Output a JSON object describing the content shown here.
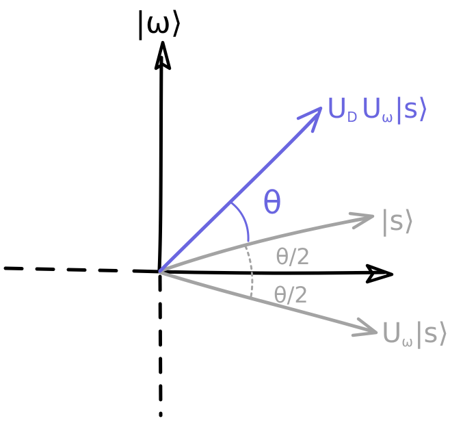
{
  "labels": {
    "omega_axis": "|ω⟩",
    "rotated": "U",
    "rotated_sub_d": "D",
    "rotated_mid": "U",
    "rotated_sub_w": "ω",
    "rotated_ket": "|s⟩",
    "theta": "θ",
    "state_s": "|s⟩",
    "half_angle_top": "θ/2",
    "half_angle_bottom": "θ/2",
    "reflected": "U",
    "reflected_sub": "ω",
    "reflected_ket": "|s⟩"
  },
  "colors": {
    "axis": "#000000",
    "rotated_vector": "#6a66e0",
    "grey_vectors": "#a3a3a3",
    "background": "#ffffff"
  }
}
